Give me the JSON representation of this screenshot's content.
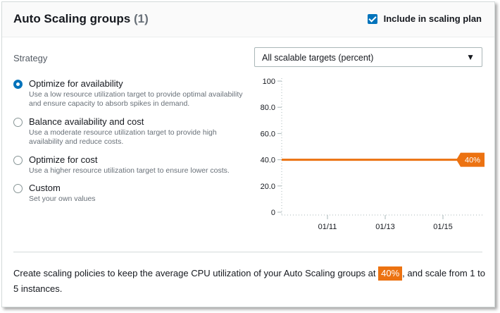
{
  "header": {
    "title": "Auto Scaling groups",
    "count": "(1)",
    "include_label": "Include in scaling plan",
    "include_checked": true
  },
  "strategy": {
    "label": "Strategy",
    "options": [
      {
        "title": "Optimize for availability",
        "desc": "Use a low resource utilization target to provide optimal availability and ensure capacity to absorb spikes in demand.",
        "selected": true
      },
      {
        "title": "Balance availability and cost",
        "desc": "Use a moderate resource utilization target to provide high availability and reduce costs.",
        "selected": false
      },
      {
        "title": "Optimize for cost",
        "desc": "Use a higher resource utilization target to ensure lower costs.",
        "selected": false
      },
      {
        "title": "Custom",
        "desc": "Set your own values",
        "selected": false
      }
    ]
  },
  "dropdown": {
    "selected": "All scalable targets (percent)",
    "caret": "▼"
  },
  "chart_data": {
    "type": "line",
    "ylim": [
      0,
      100
    ],
    "yticks": [
      "100",
      "80.0",
      "60.0",
      "40.0",
      "20.0",
      "0"
    ],
    "ytick_values": [
      100,
      80,
      60,
      40,
      20,
      0
    ],
    "xticks": [
      "01/11",
      "01/13",
      "01/15"
    ],
    "series": [
      {
        "values": [
          40,
          40
        ]
      }
    ],
    "marker_label": "40%",
    "line_color": "#ec7211"
  },
  "footer": {
    "text_before": "Create scaling policies to keep the average CPU utilization of your Auto Scaling groups at ",
    "target_pct": "40%",
    "text_after": ", and scale from 1 to 5 instances."
  },
  "colors": {
    "accent": "#0073bb",
    "orange": "#ec7211"
  }
}
